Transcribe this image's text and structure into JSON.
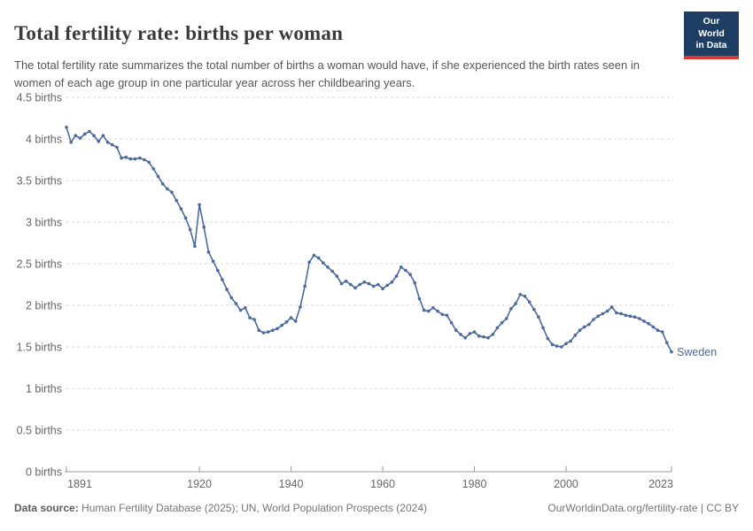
{
  "header": {
    "title": "Total fertility rate: births per woman",
    "subtitle": "The total fertility rate summarizes the total number of births a woman would have, if she experienced the birth rates seen in women of each age group in one particular year across her childbearing years."
  },
  "logo": {
    "line1": "Our World",
    "line2": "in Data",
    "bg_color": "#1d3d63",
    "accent_color": "#d93a34"
  },
  "footer": {
    "source_label": "Data source:",
    "source_text": " Human Fertility Database (2025); UN, World Population Prospects (2024)",
    "link_text": "OurWorldinData.org/fertility-rate | CC BY"
  },
  "colors": {
    "line": "#4c6a9c",
    "grid": "#d9d9d9",
    "axis": "#9a9a9a",
    "tick_text": "#666666"
  },
  "chart_data": {
    "type": "line",
    "title": "Total fertility rate: births per woman",
    "xlabel": "",
    "ylabel": "births",
    "xlim": [
      1891,
      2023
    ],
    "ylim": [
      0,
      4.5
    ],
    "grid": "horizontal-dashed",
    "legend_position": "end-of-line-label",
    "y_ticks": [
      {
        "value": 0,
        "label": "0 births"
      },
      {
        "value": 0.5,
        "label": "0.5 births"
      },
      {
        "value": 1,
        "label": "1 births"
      },
      {
        "value": 1.5,
        "label": "1.5 births"
      },
      {
        "value": 2,
        "label": "2 births"
      },
      {
        "value": 2.5,
        "label": "2.5 births"
      },
      {
        "value": 3,
        "label": "3 births"
      },
      {
        "value": 3.5,
        "label": "3.5 births"
      },
      {
        "value": 4,
        "label": "4 births"
      },
      {
        "value": 4.5,
        "label": "4.5 births"
      }
    ],
    "x_ticks": [
      {
        "value": 1891,
        "label": "1891"
      },
      {
        "value": 1920,
        "label": "1920"
      },
      {
        "value": 1940,
        "label": "1940"
      },
      {
        "value": 1960,
        "label": "1960"
      },
      {
        "value": 1980,
        "label": "1980"
      },
      {
        "value": 2000,
        "label": "2000"
      },
      {
        "value": 2023,
        "label": "2023"
      }
    ],
    "series": [
      {
        "name": "Sweden",
        "color": "#4c6a9c",
        "x_start": 1891,
        "x_step": 1,
        "values": [
          4.14,
          3.96,
          4.04,
          4.01,
          4.06,
          4.09,
          4.04,
          3.97,
          4.04,
          3.96,
          3.93,
          3.9,
          3.77,
          3.78,
          3.76,
          3.76,
          3.77,
          3.75,
          3.72,
          3.64,
          3.55,
          3.46,
          3.4,
          3.36,
          3.26,
          3.16,
          3.05,
          2.91,
          2.71,
          3.21,
          2.94,
          2.64,
          2.53,
          2.42,
          2.31,
          2.19,
          2.09,
          2.02,
          1.94,
          1.97,
          1.85,
          1.83,
          1.7,
          1.67,
          1.68,
          1.7,
          1.72,
          1.76,
          1.8,
          1.85,
          1.81,
          1.98,
          2.23,
          2.52,
          2.6,
          2.57,
          2.51,
          2.46,
          2.41,
          2.35,
          2.26,
          2.29,
          2.25,
          2.21,
          2.25,
          2.28,
          2.26,
          2.23,
          2.25,
          2.2,
          2.24,
          2.28,
          2.35,
          2.46,
          2.42,
          2.37,
          2.27,
          2.08,
          1.94,
          1.93,
          1.97,
          1.93,
          1.89,
          1.88,
          1.79,
          1.7,
          1.65,
          1.61,
          1.66,
          1.68,
          1.63,
          1.62,
          1.61,
          1.65,
          1.73,
          1.79,
          1.84,
          1.96,
          2.02,
          2.13,
          2.11,
          2.04,
          1.95,
          1.86,
          1.73,
          1.6,
          1.53,
          1.51,
          1.5,
          1.54,
          1.57,
          1.64,
          1.7,
          1.74,
          1.77,
          1.83,
          1.87,
          1.9,
          1.93,
          1.98,
          1.91,
          1.9,
          1.88,
          1.87,
          1.86,
          1.84,
          1.81,
          1.78,
          1.74,
          1.7,
          1.68,
          1.55,
          1.44
        ]
      }
    ]
  }
}
